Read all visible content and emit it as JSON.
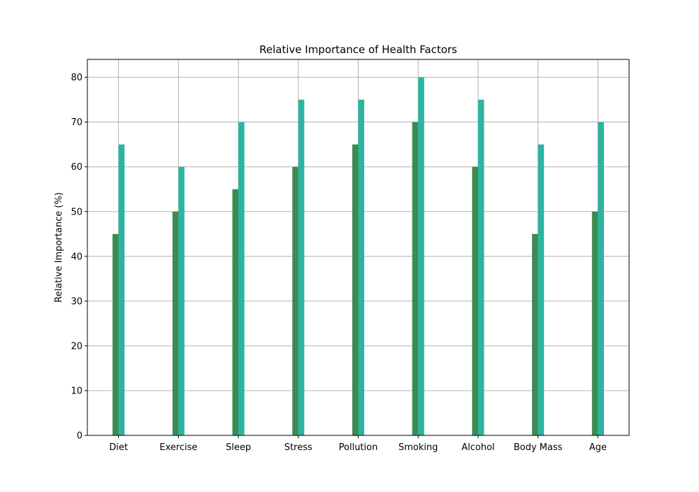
{
  "chart_data": {
    "type": "bar",
    "title": "Relative Importance of Health Factors",
    "xlabel": "",
    "ylabel": "Relative Importance (%)",
    "categories": [
      "Diet",
      "Exercise",
      "Sleep",
      "Stress",
      "Pollution",
      "Smoking",
      "Alcohol",
      "Body Mass",
      "Age"
    ],
    "series": [
      {
        "values": [
          45,
          50,
          55,
          60,
          65,
          70,
          60,
          45,
          50
        ],
        "color": "#3d8b53"
      },
      {
        "values": [
          65,
          60,
          70,
          75,
          75,
          80,
          75,
          65,
          70
        ],
        "color": "#2bb5a0"
      }
    ],
    "ylim": [
      0,
      84
    ],
    "yticks": [
      0,
      10,
      20,
      30,
      40,
      50,
      60,
      70,
      80
    ],
    "grid": true,
    "legend": "none"
  }
}
